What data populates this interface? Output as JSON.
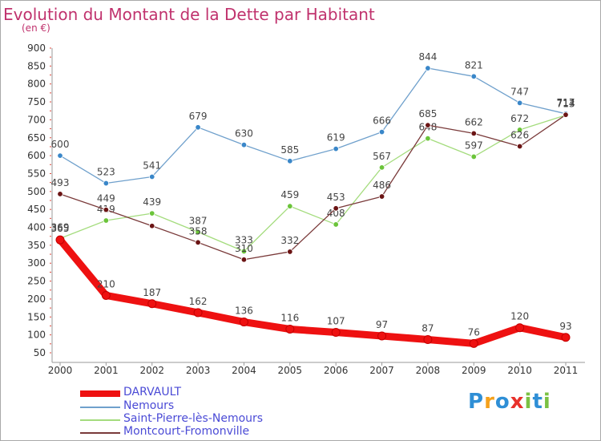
{
  "header": {
    "title": "Evolution du Montant de la Dette par Habitant",
    "unit": "(en €)"
  },
  "logo": {
    "text": "Proxiti",
    "letters": [
      {
        "ch": "P",
        "color": "#2f8fd6"
      },
      {
        "ch": "r",
        "color": "#f5a11b"
      },
      {
        "ch": "o",
        "color": "#2f8fd6"
      },
      {
        "ch": "x",
        "color": "#e8312b"
      },
      {
        "ch": "i",
        "color": "#7bc143"
      },
      {
        "ch": "t",
        "color": "#2f8fd6"
      },
      {
        "ch": "i",
        "color": "#7bc143"
      }
    ]
  },
  "chart_data": {
    "type": "line",
    "title": "Evolution du Montant de la Dette par Habitant",
    "subtitle": "(en €)",
    "x": [
      "2000",
      "2001",
      "2002",
      "2003",
      "2004",
      "2005",
      "2006",
      "2007",
      "2008",
      "2009",
      "2010",
      "2011"
    ],
    "ylim": [
      50,
      900
    ],
    "yticks": [
      50,
      100,
      150,
      200,
      250,
      300,
      350,
      400,
      450,
      500,
      550,
      600,
      650,
      700,
      750,
      800,
      850,
      900
    ],
    "grid": false,
    "legend_position": "bottom-left",
    "series": [
      {
        "name": "DARVAULT",
        "color": "#ee1111",
        "values": [
          365,
          210,
          187,
          162,
          136,
          116,
          107,
          97,
          87,
          76,
          120,
          93
        ],
        "labels": [
          "365",
          "210",
          "187",
          "162",
          "136",
          "116",
          "107",
          "97",
          "87",
          "76",
          "120",
          "93"
        ]
      },
      {
        "name": "Nemours",
        "color": "#6fa0cc",
        "marker": "#3a87c9",
        "values": [
          600,
          523,
          541,
          679,
          630,
          585,
          619,
          666,
          844,
          821,
          747,
          717
        ],
        "labels": [
          "600",
          "523",
          "541",
          "679",
          "630",
          "585",
          "619",
          "666",
          "844",
          "821",
          "747",
          "717"
        ]
      },
      {
        "name": "Saint-Pierre-lès-Nemours",
        "color": "#a4dc7d",
        "marker": "#6bc43a",
        "values": [
          369,
          419,
          439,
          387,
          333,
          459,
          408,
          567,
          648,
          597,
          672,
          713
        ],
        "labels": [
          "369",
          "419",
          "439",
          "387",
          "333",
          "459",
          "408",
          "567",
          "648",
          "597",
          "672",
          "713"
        ]
      },
      {
        "name": "Montcourt-Fromonville",
        "color": "#7a3a3a",
        "marker": "#6b1414",
        "values": [
          493,
          449,
          404,
          358,
          310,
          332,
          453,
          486,
          685,
          662,
          626,
          714
        ],
        "labels": [
          "493",
          "449",
          "",
          "358",
          "310",
          "332",
          "453",
          "486",
          "685",
          "662",
          "626",
          "714"
        ]
      }
    ]
  }
}
